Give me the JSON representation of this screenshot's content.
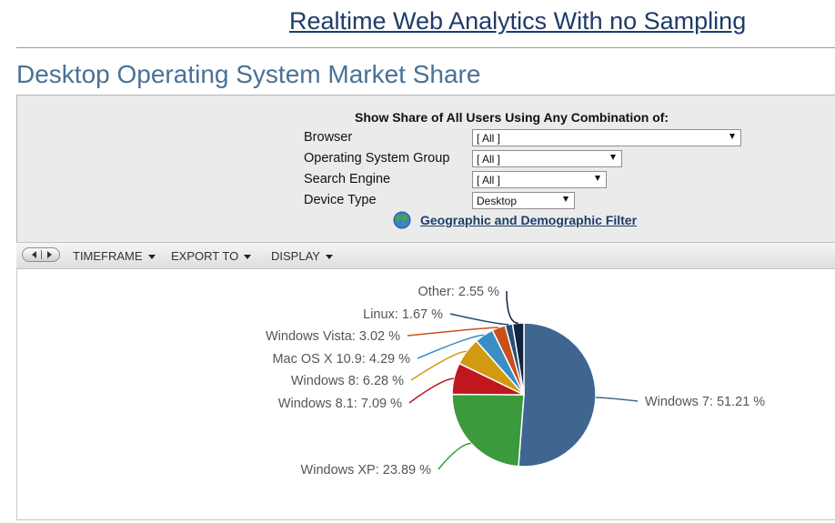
{
  "banner": {
    "title": "Realtime Web Analytics With no Sampling"
  },
  "page": {
    "title": "Desktop Operating System Market Share"
  },
  "filters": {
    "heading": "Show Share of All Users Using Any Combination of:",
    "rows": [
      {
        "label": "Browser",
        "value": "[ All ]"
      },
      {
        "label": "Operating System Group",
        "value": "[ All ]"
      },
      {
        "label": "Search Engine",
        "value": "[ All ]"
      },
      {
        "label": "Device Type",
        "value": "Desktop"
      }
    ],
    "geo_link": "Geographic and Demographic Filter",
    "geo_icon": "globe-icon"
  },
  "toolbar": {
    "pager_icon": "pager-arrows-icon",
    "timeframe": "TIMEFRAME",
    "export": "EXPORT TO",
    "display": "DISPLAY"
  },
  "chart_data": {
    "type": "pie",
    "title": "",
    "slices": [
      {
        "label": "Windows 7",
        "value": 51.21,
        "display": "Windows 7: 51.21 %",
        "color": "#3e6690"
      },
      {
        "label": "Windows XP",
        "value": 23.89,
        "display": "Windows XP: 23.89 %",
        "color": "#3a9a3c"
      },
      {
        "label": "Windows 8.1",
        "value": 7.09,
        "display": "Windows 8.1: 7.09 %",
        "color": "#c0171f"
      },
      {
        "label": "Windows 8",
        "value": 6.28,
        "display": "Windows 8: 6.28 %",
        "color": "#d19a10"
      },
      {
        "label": "Mac OS X 10.9",
        "value": 4.29,
        "display": "Mac OS X 10.9: 4.29 %",
        "color": "#3b8ec4"
      },
      {
        "label": "Windows Vista",
        "value": 3.02,
        "display": "Windows Vista: 3.02 %",
        "color": "#c9501a"
      },
      {
        "label": "Linux",
        "value": 1.67,
        "display": "Linux: 1.67 %",
        "color": "#2a4c7a"
      },
      {
        "label": "Other",
        "value": 2.55,
        "display": "Other: 2.55 %",
        "color": "#10243f"
      }
    ]
  }
}
